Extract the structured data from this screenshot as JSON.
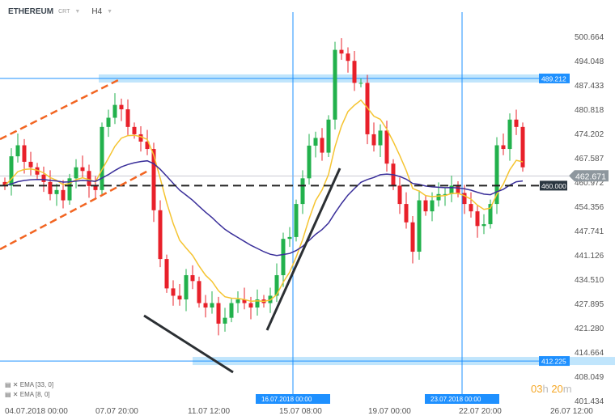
{
  "header": {
    "symbol": "ETHEREUM",
    "type": "CRT",
    "timeframe": "H4"
  },
  "legend": [
    {
      "label": "EMA [33, 0]",
      "color": "#3a2f9a"
    },
    {
      "label": "EMA [8, 0]",
      "color": "#f5c431"
    }
  ],
  "timer": {
    "h": "03",
    "h_unit": "h",
    "m": "20",
    "m_unit": "m"
  },
  "chart_data": {
    "type": "candlestick",
    "y_ticks": [
      "500.664",
      "494.048",
      "487.433",
      "480.818",
      "474.202",
      "467.587",
      "460.972",
      "454.356",
      "447.741",
      "441.126",
      "434.510",
      "427.895",
      "421.280",
      "414.664",
      "408.049",
      "401.434"
    ],
    "ylim": [
      401.434,
      500.664
    ],
    "x_ticks": [
      "04.07.2018  00:00",
      "07.07  20:00",
      "11.07  12:00",
      "15.07  08:00",
      "19.07  00:00",
      "22.07  20:00",
      "26.07  12:00"
    ],
    "current_price": "462.671",
    "levels": [
      {
        "price": 489.212,
        "label": "489.212",
        "kind": "zone",
        "color": "#1e90ff"
      },
      {
        "price": 412.225,
        "label": "412.225",
        "kind": "zone",
        "color": "#1e90ff"
      },
      {
        "price": 460.0,
        "label": "460.000",
        "kind": "dashed",
        "color": "#222222"
      }
    ],
    "vertical_markers": [
      {
        "label": "16.07.2018 00:00"
      },
      {
        "label": "23.07.2018 00:00"
      }
    ],
    "colors": {
      "up": "#22b14c",
      "down": "#e8202a",
      "ema8": "#f5c431",
      "ema33": "#3a2f9a",
      "channel": "#f26522"
    },
    "closes": [
      460,
      468,
      471,
      466.5,
      465,
      463,
      461,
      457.7,
      458.8,
      456,
      462,
      465,
      464,
      459.9,
      458.8,
      476,
      478.5,
      482,
      480.8,
      476,
      474,
      472,
      470,
      453.3,
      440,
      432,
      430,
      429,
      435.6,
      434,
      428,
      426.8,
      428,
      422.4,
      424,
      428,
      429,
      428,
      426.8,
      429,
      428,
      430,
      435.6,
      445.5,
      446,
      455,
      462,
      470.9,
      473,
      469,
      478,
      497,
      496,
      494,
      488,
      488,
      474,
      471,
      475,
      466,
      460,
      455,
      450,
      442,
      456,
      453,
      456,
      457.7,
      457.7,
      460,
      458,
      455,
      453,
      449,
      449.5,
      455,
      471,
      470,
      478,
      476,
      465
    ]
  }
}
